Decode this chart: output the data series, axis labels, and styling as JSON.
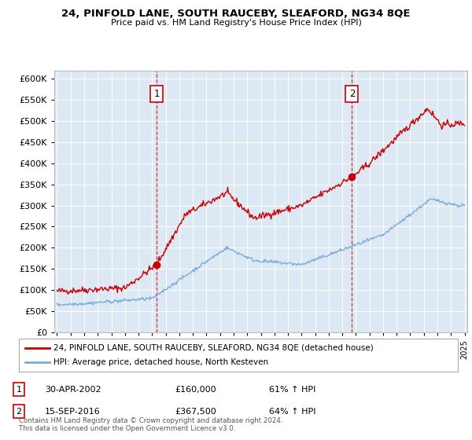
{
  "title": "24, PINFOLD LANE, SOUTH RAUCEBY, SLEAFORD, NG34 8QE",
  "subtitle": "Price paid vs. HM Land Registry's House Price Index (HPI)",
  "plot_bg_color": "#dce9f5",
  "ylim": [
    0,
    620000
  ],
  "yticks": [
    0,
    50000,
    100000,
    150000,
    200000,
    250000,
    300000,
    350000,
    400000,
    450000,
    500000,
    550000,
    600000
  ],
  "xlim_start": 1994.8,
  "xlim_end": 2025.2,
  "xticks": [
    1995,
    1996,
    1997,
    1998,
    1999,
    2000,
    2001,
    2002,
    2003,
    2004,
    2005,
    2006,
    2007,
    2008,
    2009,
    2010,
    2011,
    2012,
    2013,
    2014,
    2015,
    2016,
    2017,
    2018,
    2019,
    2020,
    2021,
    2022,
    2023,
    2024,
    2025
  ],
  "purchase1_x": 2002.33,
  "purchase1_y": 160000,
  "purchase1_label": "1",
  "purchase2_x": 2016.71,
  "purchase2_y": 367500,
  "purchase2_label": "2",
  "line1_color": "#cc0000",
  "line2_color": "#7aabdb",
  "legend_label1": "24, PINFOLD LANE, SOUTH RAUCEBY, SLEAFORD, NG34 8QE (detached house)",
  "legend_label2": "HPI: Average price, detached house, North Kesteven",
  "annotation1_date": "30-APR-2002",
  "annotation1_price": "£160,000",
  "annotation1_hpi": "61% ↑ HPI",
  "annotation2_date": "15-SEP-2016",
  "annotation2_price": "£367,500",
  "annotation2_hpi": "64% ↑ HPI",
  "footer": "Contains HM Land Registry data © Crown copyright and database right 2024.\nThis data is licensed under the Open Government Licence v3.0."
}
